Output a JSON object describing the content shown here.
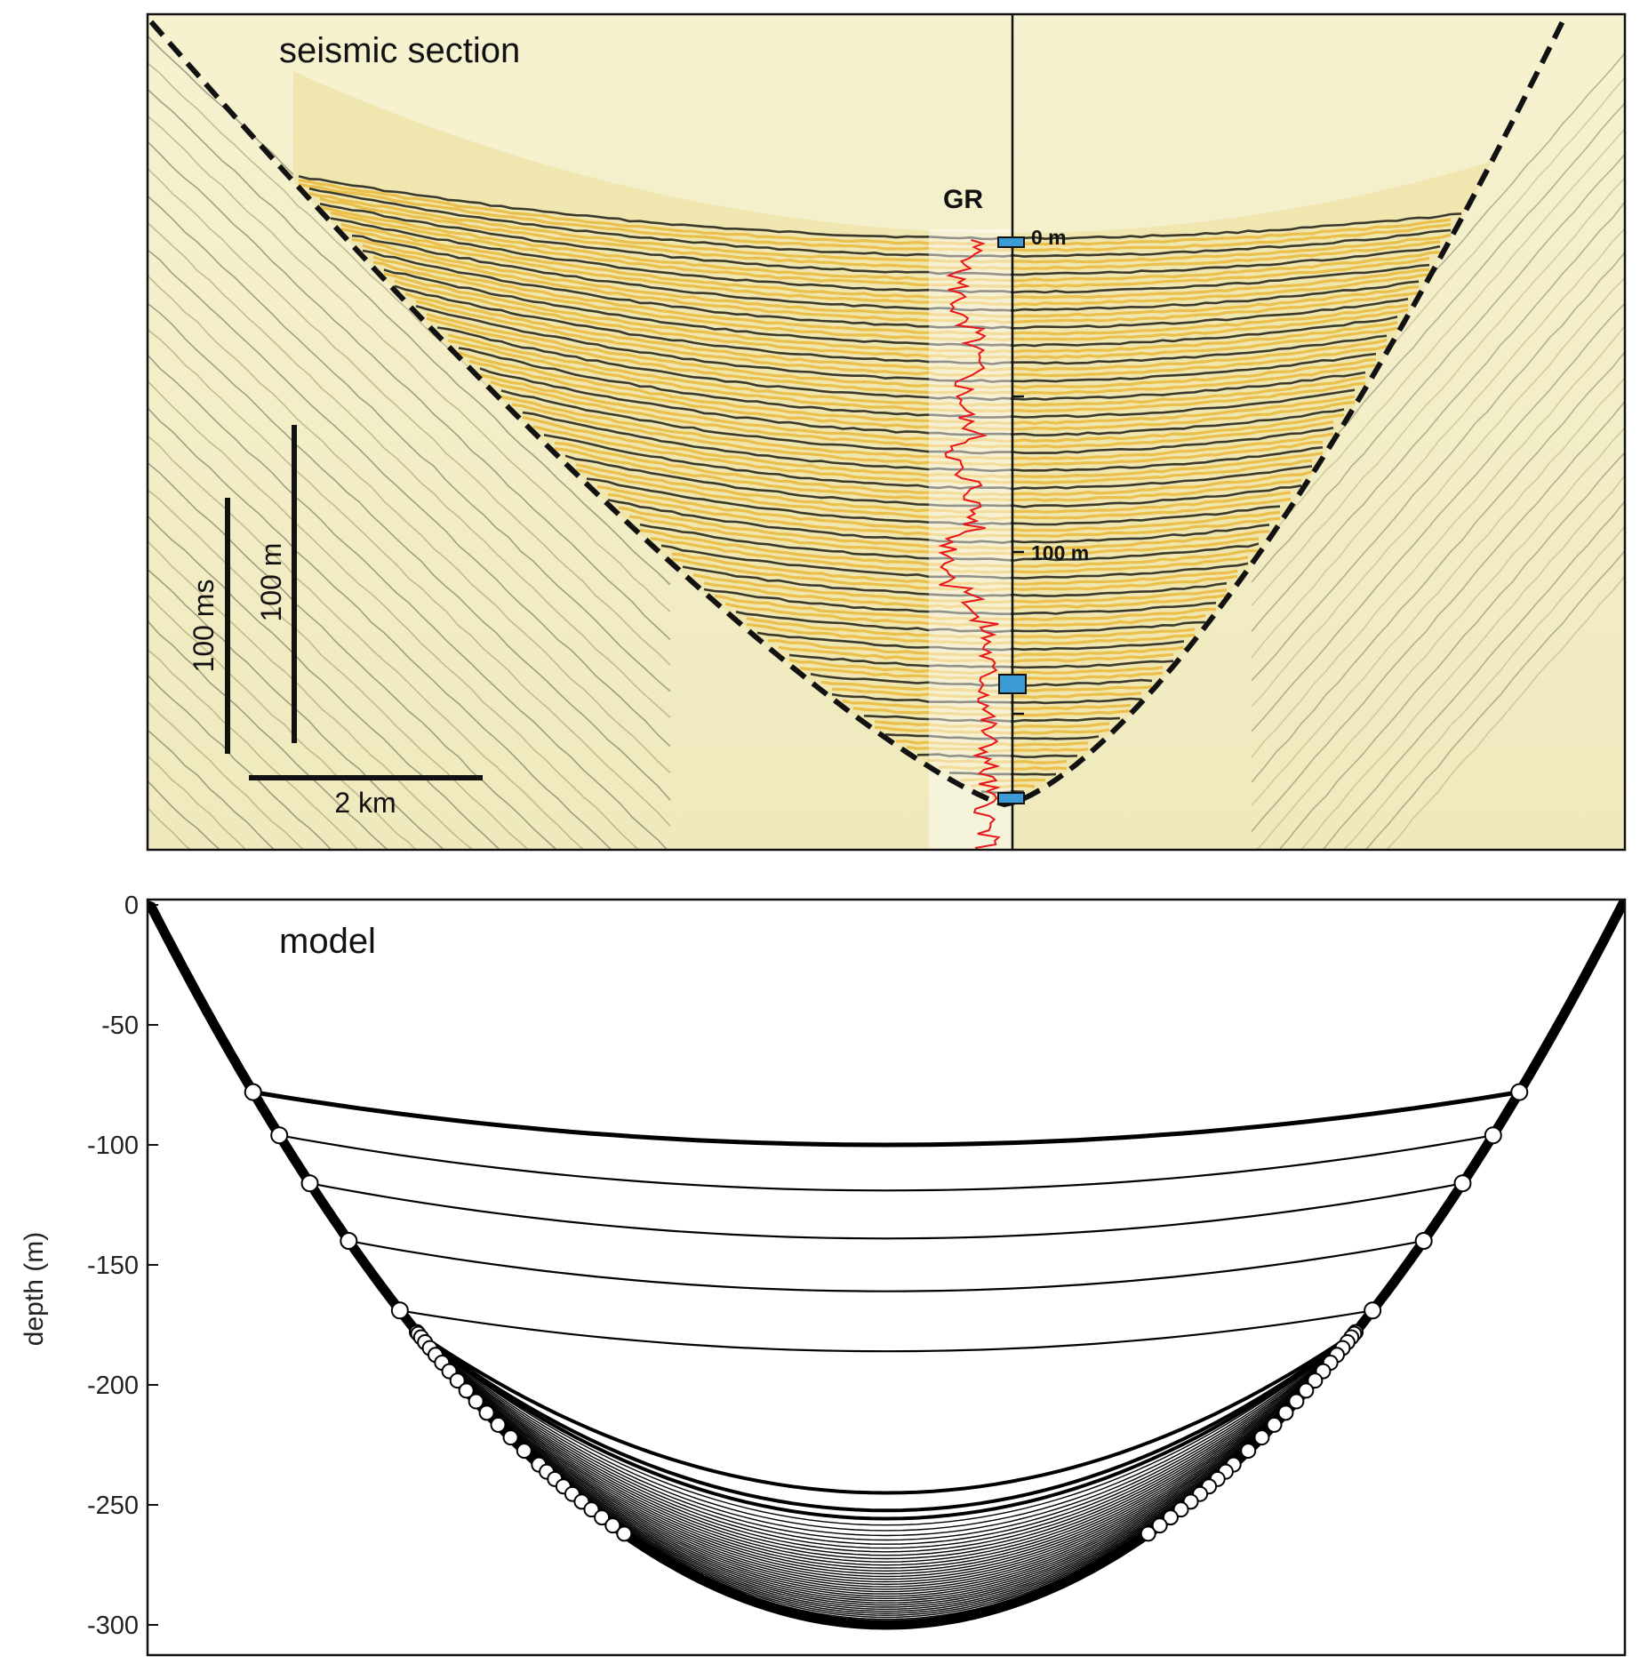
{
  "seismic": {
    "title": "seismic section",
    "log_label": "GR",
    "depth_marks": [
      "0 m",
      "100 m"
    ],
    "scale_bars": {
      "time": "100 ms",
      "depth": "100 m",
      "horizontal": "2 km"
    },
    "colors": {
      "background": "#f3efc4",
      "reflector_dark": "#1a1a14",
      "reflector_yellow": "#e8b32a",
      "gr_log": "#e8151b",
      "marker": "#3a9bd5"
    }
  },
  "model": {
    "title": "model",
    "y_axis_label": "depth (m)",
    "y_ticks": [
      "0",
      "-50",
      "-100",
      "-150",
      "-200",
      "-250",
      "-300"
    ],
    "ylim": [
      -320,
      0
    ]
  },
  "chart_data": {
    "type": "line",
    "title": "model",
    "ylabel": "depth (m)",
    "ylim": [
      -320,
      0
    ],
    "yticks": [
      0,
      -50,
      -100,
      -150,
      -200,
      -250,
      -300
    ],
    "basin_floor_max_depth": -300,
    "surfaces": [
      {
        "center_depth": -100,
        "edge_depth": -78
      },
      {
        "center_depth": -119,
        "edge_depth": -96
      },
      {
        "center_depth": -139,
        "edge_depth": -116
      },
      {
        "center_depth": -161,
        "edge_depth": -140
      },
      {
        "center_depth": -186,
        "edge_depth": -169
      }
    ],
    "lower_package": {
      "top_center_depth": -245,
      "bottom_center_depth": -300,
      "edge_depth_range": [
        -178,
        -262
      ],
      "line_count": 40
    }
  }
}
